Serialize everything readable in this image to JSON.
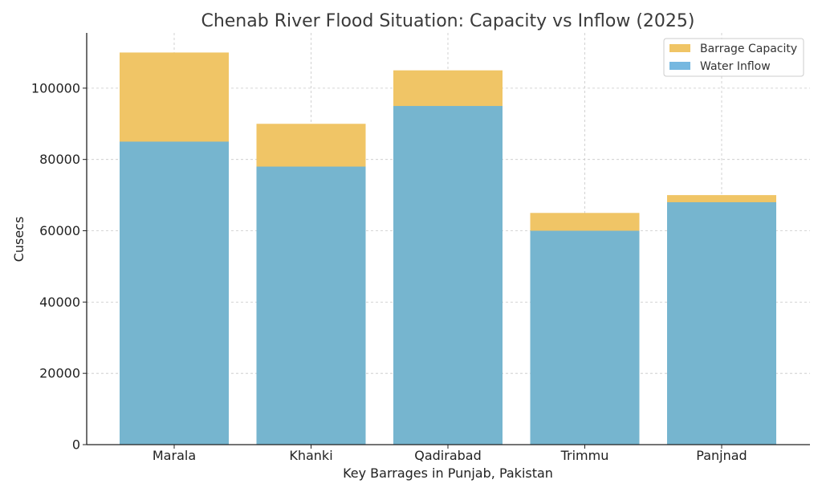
{
  "chart_data": {
    "type": "bar",
    "title": "Chenab River Flood Situation: Capacity vs Inflow (2025)",
    "xlabel": "Key Barrages in Punjab, Pakistan",
    "ylabel": "Cusecs",
    "categories": [
      "Marala",
      "Khanki",
      "Qadirabad",
      "Trimmu",
      "Panjnad"
    ],
    "series": [
      {
        "name": "Barrage Capacity",
        "values": [
          110000,
          90000,
          105000,
          65000,
          70000
        ],
        "color": "#f0c566"
      },
      {
        "name": "Water Inflow",
        "values": [
          85000,
          78000,
          95000,
          60000,
          68000
        ],
        "color": "#76b5cf"
      }
    ],
    "legend_swatch_colors": [
      "#f0c566",
      "#76b8e0"
    ],
    "ylim": [
      0,
      115500
    ],
    "yticks": [
      0,
      20000,
      40000,
      60000,
      80000,
      100000
    ],
    "ytick_labels": [
      "0",
      "20000",
      "40000",
      "60000",
      "80000",
      "100000"
    ],
    "grid": true,
    "legend_position": "top-right",
    "overlay": true
  }
}
